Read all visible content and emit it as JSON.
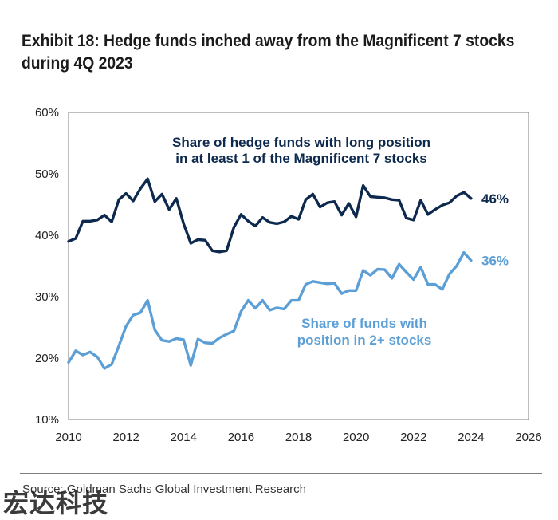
{
  "header": {
    "title_line1": "Exhibit 18: Hedge funds inched away from the Magnificent 7 stocks",
    "title_line2": "during 4Q 2023"
  },
  "source": "Source: Goldman Sachs Global Investment Research",
  "watermark": "宏达科技",
  "colors": {
    "dark_series": "#0d2a4e",
    "light_series": "#5b9fd6",
    "axis": "#7f7f7f"
  },
  "chart_data": {
    "type": "line",
    "title": "Exhibit 18: Hedge funds inched away from the Magnificent 7 stocks during 4Q 2023",
    "xlim": [
      2010,
      2026
    ],
    "ylim": [
      10,
      60
    ],
    "x_ticks": [
      "2010",
      "2012",
      "2014",
      "2016",
      "2018",
      "2020",
      "2022",
      "2024",
      "2026"
    ],
    "y_ticks": [
      "10%",
      "20%",
      "30%",
      "40%",
      "50%",
      "60%"
    ],
    "grid": false,
    "series": [
      {
        "name": "Share of hedge funds with long position in at least 1 of the Magnificent 7 stocks",
        "label_line1": "Share of hedge funds with long position",
        "label_line2": "in at least 1 of the Magnificent 7 stocks",
        "end_label": "46%",
        "x": [
          2010.0,
          2010.25,
          2010.5,
          2010.75,
          2011.0,
          2011.25,
          2011.5,
          2011.75,
          2012.0,
          2012.25,
          2012.5,
          2012.75,
          2013.0,
          2013.25,
          2013.5,
          2013.75,
          2014.0,
          2014.25,
          2014.5,
          2014.75,
          2015.0,
          2015.25,
          2015.5,
          2015.75,
          2016.0,
          2016.25,
          2016.5,
          2016.75,
          2017.0,
          2017.25,
          2017.5,
          2017.75,
          2018.0,
          2018.25,
          2018.5,
          2018.75,
          2019.0,
          2019.25,
          2019.5,
          2019.75,
          2020.0,
          2020.25,
          2020.5,
          2020.75,
          2021.0,
          2021.25,
          2021.5,
          2021.75,
          2022.0,
          2022.25,
          2022.5,
          2022.75,
          2023.0,
          2023.25,
          2023.5,
          2023.75,
          2024.0
        ],
        "values": [
          39.0,
          39.5,
          42.3,
          42.3,
          42.5,
          43.3,
          42.2,
          45.8,
          46.8,
          45.6,
          47.6,
          49.2,
          45.5,
          46.7,
          44.2,
          46.0,
          41.9,
          38.7,
          39.3,
          39.2,
          37.5,
          37.3,
          37.5,
          41.3,
          43.4,
          42.3,
          41.5,
          42.9,
          42.1,
          41.9,
          42.2,
          43.1,
          42.6,
          45.8,
          46.7,
          44.6,
          45.3,
          45.5,
          43.3,
          45.2,
          43.0,
          48.1,
          46.3,
          46.2,
          46.1,
          45.8,
          45.7,
          42.8,
          42.5,
          45.7,
          43.4,
          44.2,
          44.9,
          45.3,
          46.4,
          47.0,
          46.0
        ]
      },
      {
        "name": "Share of funds with position in 2+ stocks",
        "label_line1": "Share of funds with",
        "label_line2": "position in 2+ stocks",
        "end_label": "36%",
        "x": [
          2010.0,
          2010.25,
          2010.5,
          2010.75,
          2011.0,
          2011.25,
          2011.5,
          2011.75,
          2012.0,
          2012.25,
          2012.5,
          2012.75,
          2013.0,
          2013.25,
          2013.5,
          2013.75,
          2014.0,
          2014.25,
          2014.5,
          2014.75,
          2015.0,
          2015.25,
          2015.5,
          2015.75,
          2016.0,
          2016.25,
          2016.5,
          2016.75,
          2017.0,
          2017.25,
          2017.5,
          2017.75,
          2018.0,
          2018.25,
          2018.5,
          2018.75,
          2019.0,
          2019.25,
          2019.5,
          2019.75,
          2020.0,
          2020.25,
          2020.5,
          2020.75,
          2021.0,
          2021.25,
          2021.5,
          2021.75,
          2022.0,
          2022.25,
          2022.5,
          2022.75,
          2023.0,
          2023.25,
          2023.5,
          2023.75,
          2024.0
        ],
        "values": [
          19.3,
          21.2,
          20.5,
          21.0,
          20.2,
          18.3,
          19.0,
          22.0,
          25.2,
          27.0,
          27.4,
          29.4,
          24.6,
          22.9,
          22.7,
          23.2,
          23.0,
          18.8,
          23.1,
          22.5,
          22.4,
          23.3,
          23.9,
          24.4,
          27.6,
          29.4,
          28.1,
          29.4,
          27.8,
          28.2,
          28.0,
          29.4,
          29.4,
          32.0,
          32.5,
          32.3,
          32.1,
          32.2,
          30.5,
          31.0,
          31.0,
          34.3,
          33.5,
          34.5,
          34.4,
          33.0,
          35.3,
          34.0,
          32.8,
          34.8,
          32.0,
          32.0,
          31.2,
          33.7,
          35.0,
          37.2,
          35.9
        ]
      }
    ]
  }
}
